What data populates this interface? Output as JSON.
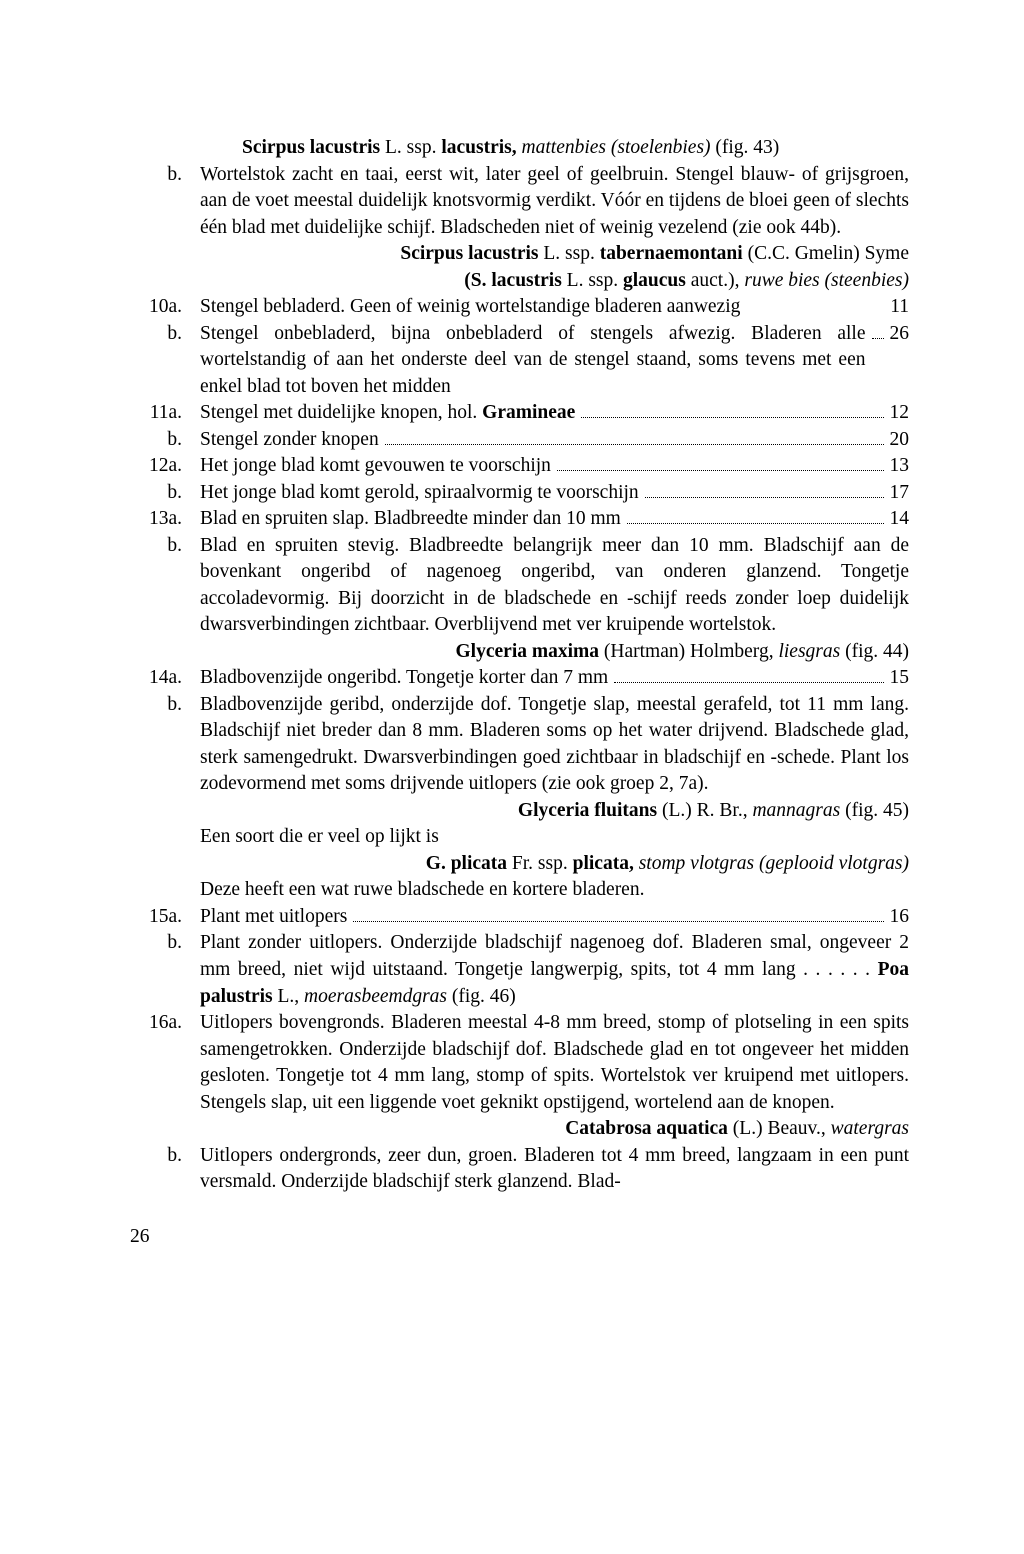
{
  "font_family": "Georgia, 'Times New Roman', serif",
  "text_color": "#000000",
  "bg_color": "#ffffff",
  "page_number": "26",
  "entries": [
    {
      "label": "",
      "segments": [
        {
          "bold": true,
          "text": "Scirpus lacustris "
        },
        {
          "text": "L. ssp. "
        },
        {
          "bold": true,
          "text": "lacustris, "
        },
        {
          "italic": true,
          "text": "mattenbies (stoelenbies) "
        },
        {
          "text": "(fig. 43)"
        }
      ],
      "indent_first": true
    },
    {
      "label": "b.",
      "segments": [
        {
          "text": "Wortelstok zacht en taai, eerst wit, later geel of geelbruin. Stengel blauw- of grijsgroen, aan de voet meestal duidelijk knotsvormig verdikt. Vóór en tijdens de bloei geen of slechts één blad met duidelijke schijf. Bladscheden niet of weinig vezelend (zie ook 44b)."
        }
      ]
    },
    {
      "label": "",
      "right": true,
      "segments": [
        {
          "bold": true,
          "text": "Scirpus lacustris "
        },
        {
          "text": "L. ssp. "
        },
        {
          "bold": true,
          "text": "tabernaemontani "
        },
        {
          "text": "(C.C. Gmelin) Syme"
        }
      ]
    },
    {
      "label": "",
      "right": true,
      "segments": [
        {
          "bold": true,
          "text": "(S. lacustris "
        },
        {
          "text": "L. ssp. "
        },
        {
          "bold": true,
          "text": "glaucus "
        },
        {
          "text": "auct.), "
        },
        {
          "italic": true,
          "text": "ruwe bies (steenbies)"
        }
      ]
    },
    {
      "label": "10a.",
      "segments": [
        {
          "text": "Stengel bebladerd. Geen of weinig wortelstandige bladeren aanwezig"
        }
      ],
      "goto": "11"
    },
    {
      "label": "b.",
      "segments": [
        {
          "text": "Stengel onbebladerd, bijna onbebladerd of stengels afwezig. Bladeren alle wortelstandig of aan het onderste deel van de stengel staand, soms tevens met een enkel blad tot boven het midden"
        }
      ],
      "dots": true,
      "goto": "26"
    },
    {
      "label": "11a.",
      "segments": [
        {
          "text": "Stengel met duidelijke knopen, hol. "
        },
        {
          "bold": true,
          "text": "Gramineae"
        }
      ],
      "dots": true,
      "goto": "12"
    },
    {
      "label": "b.",
      "segments": [
        {
          "text": "Stengel zonder knopen"
        }
      ],
      "dots": true,
      "goto": "20"
    },
    {
      "label": "12a.",
      "segments": [
        {
          "text": "Het jonge blad komt gevouwen te voorschijn"
        }
      ],
      "dots": true,
      "goto": "13"
    },
    {
      "label": "b.",
      "segments": [
        {
          "text": "Het jonge blad komt gerold, spiraalvormig te voorschijn"
        }
      ],
      "dots": true,
      "goto": "17"
    },
    {
      "label": "13a.",
      "segments": [
        {
          "text": "Blad en spruiten slap. Bladbreedte minder dan 10 mm"
        }
      ],
      "dots": true,
      "goto": "14"
    },
    {
      "label": "b.",
      "segments": [
        {
          "text": "Blad en spruiten stevig. Bladbreedte belangrijk meer dan 10 mm. Bladschijf aan de bovenkant ongeribd of nagenoeg ongeribd, van onderen glanzend. Tongetje accoladevormig. Bij doorzicht in de bladschede en -schijf reeds zonder loep duidelijk dwarsverbindingen zichtbaar. Overblijvend met ver kruipende wortelstok."
        }
      ]
    },
    {
      "label": "",
      "right": true,
      "segments": [
        {
          "bold": true,
          "text": "Glyceria maxima "
        },
        {
          "text": "(Hartman) Holmberg, "
        },
        {
          "italic": true,
          "text": "liesgras "
        },
        {
          "text": "(fig. 44)"
        }
      ]
    },
    {
      "label": "14a.",
      "segments": [
        {
          "text": "Bladbovenzijde ongeribd. Tongetje korter dan 7 mm"
        }
      ],
      "dots": true,
      "goto": "15"
    },
    {
      "label": "b.",
      "segments": [
        {
          "text": "Bladbovenzijde geribd, onderzijde dof. Tongetje slap, meestal gerafeld, tot 11 mm lang. Bladschijf niet breder dan 8 mm. Bladeren soms op het water drijvend. Bladschede glad, sterk samengedrukt. Dwarsverbindingen goed zichtbaar in bladschijf en -schede. Plant los zodevormend met soms drijvende uitlopers (zie ook groep 2, 7a)."
        }
      ]
    },
    {
      "label": "",
      "right": true,
      "segments": [
        {
          "bold": true,
          "text": "Glyceria fluitans "
        },
        {
          "text": "(L.) R. Br., "
        },
        {
          "italic": true,
          "text": "mannagras "
        },
        {
          "text": "(fig. 45)"
        }
      ]
    },
    {
      "label": "",
      "segments": [
        {
          "text": "Een soort die er veel op lijkt is"
        }
      ]
    },
    {
      "label": "",
      "right": true,
      "indent_first": true,
      "segments": [
        {
          "bold": true,
          "text": "G. plicata "
        },
        {
          "text": "Fr. ssp. "
        },
        {
          "bold": true,
          "text": "plicata, "
        },
        {
          "italic": true,
          "text": "stomp vlotgras (geplooid vlotgras)"
        }
      ]
    },
    {
      "label": "",
      "segments": [
        {
          "text": "Deze heeft een wat ruwe bladschede en kortere bladeren."
        }
      ]
    },
    {
      "label": "15a.",
      "segments": [
        {
          "text": "Plant met uitlopers"
        }
      ],
      "dots": true,
      "goto": "16"
    },
    {
      "label": "b.",
      "segments": [
        {
          "text": "Plant zonder uitlopers. Onderzijde bladschijf nagenoeg dof. Bladeren smal, ongeveer 2 mm breed, niet wijd uitstaand. Tongetje langwerpig, spits, tot 4 mm lang . . . . . . "
        },
        {
          "bold": true,
          "text": "Poa palustris "
        },
        {
          "text": "L., "
        },
        {
          "italic": true,
          "text": "moerasbeemdgras "
        },
        {
          "text": "(fig. 46)"
        }
      ]
    },
    {
      "label": "16a.",
      "segments": [
        {
          "text": "Uitlopers bovengronds. Bladeren meestal 4-8 mm breed, stomp of plotseling in een spits samengetrokken. Onderzijde bladschijf dof. Bladschede glad en tot ongeveer het midden gesloten. Tongetje tot 4 mm lang, stomp of spits. Wortelstok ver kruipend met uitlopers. Stengels slap, uit een liggende voet geknikt opstijgend, wortelend aan de knopen."
        }
      ]
    },
    {
      "label": "",
      "right": true,
      "segments": [
        {
          "bold": true,
          "text": "Catabrosa aquatica "
        },
        {
          "text": "(L.) Beauv., "
        },
        {
          "italic": true,
          "text": "watergras"
        }
      ]
    },
    {
      "label": "b.",
      "segments": [
        {
          "text": "Uitlopers ondergronds, zeer dun, groen. Bladeren tot 4 mm breed, langzaam in een punt versmald. Onderzijde bladschijf sterk glanzend. Blad-"
        }
      ]
    }
  ]
}
